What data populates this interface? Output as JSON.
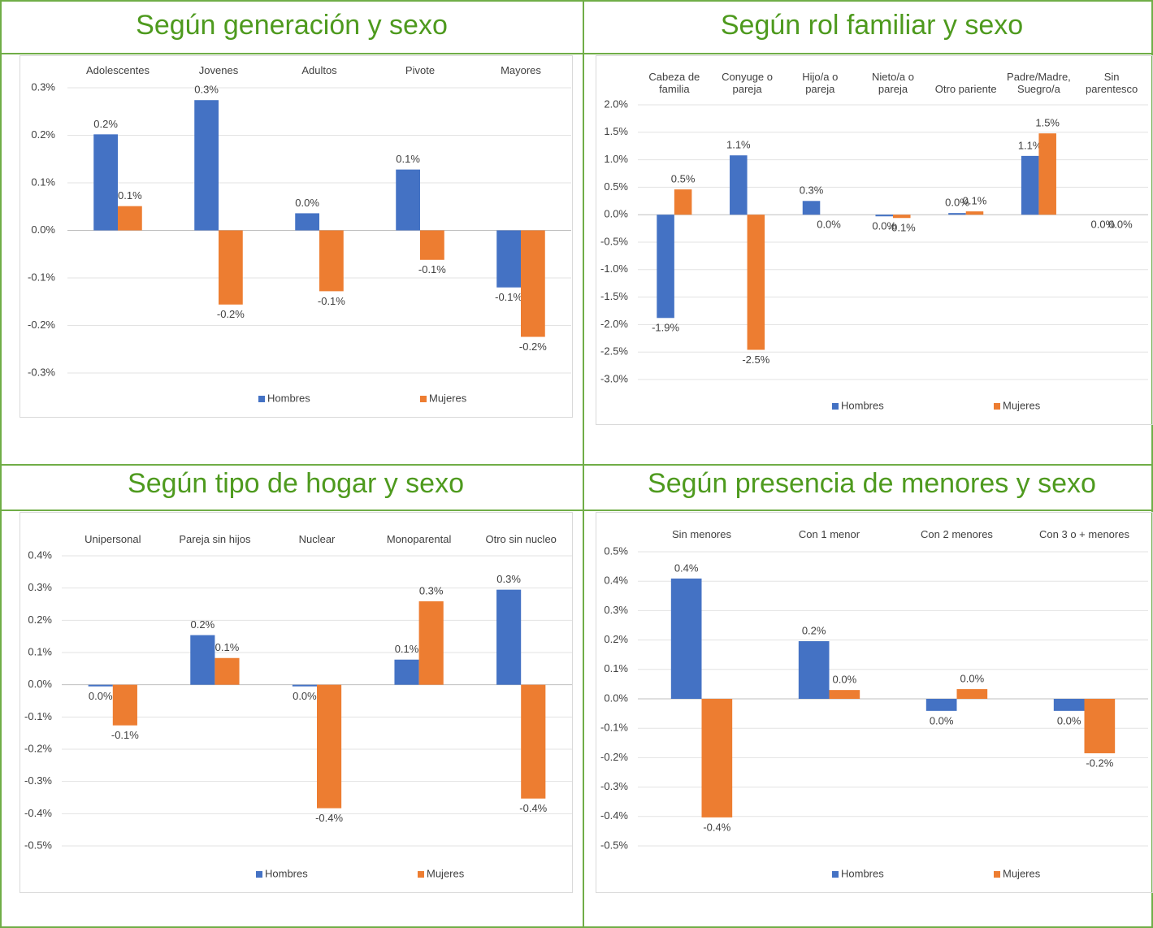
{
  "chart_data": [
    {
      "type": "bar",
      "title": "Según generación y sexo",
      "categories": [
        "Adolescentes",
        "Jovenes",
        "Adultos",
        "Pivote",
        "Mayores"
      ],
      "series": [
        {
          "name": "Hombres",
          "color": "#4472c4",
          "values": [
            0.202,
            0.274,
            0.036,
            0.128,
            -0.12
          ],
          "value_labels": [
            "0.2%",
            "0.3%",
            "0.0%",
            "0.1%",
            "-0.1%"
          ]
        },
        {
          "name": "Mujeres",
          "color": "#ed7d31",
          "values": [
            0.051,
            -0.156,
            -0.128,
            -0.062,
            -0.224
          ],
          "value_labels": [
            "0.1%",
            "-0.2%",
            "-0.1%",
            "-0.1%",
            "-0.2%"
          ]
        }
      ],
      "ylim": [
        -0.3,
        0.3
      ],
      "yticks": [
        {
          "value": -0.3,
          "label": "-0.3%"
        },
        {
          "value": -0.2,
          "label": "-0.2%"
        },
        {
          "value": -0.1,
          "label": "-0.1%"
        },
        {
          "value": 0,
          "label": "0.0%"
        },
        {
          "value": 0.1,
          "label": "0.1%"
        },
        {
          "value": 0.2,
          "label": "0.2%"
        },
        {
          "value": 0.3,
          "label": "0.3%"
        }
      ],
      "grid": true
    },
    {
      "type": "bar",
      "title": "Según rol familiar y sexo",
      "categories": [
        "Cabeza de familia",
        "Conyuge o pareja",
        "Hijo/a o pareja",
        "Nieto/a o pareja",
        "Otro pariente",
        "Padre/Madre, Suegro/a",
        "Sin parentesco"
      ],
      "series": [
        {
          "name": "Hombres",
          "color": "#4472c4",
          "values": [
            -1.88,
            1.08,
            0.25,
            -0.03,
            0.03,
            1.07,
            0
          ],
          "value_labels": [
            "-1.9%",
            "1.1%",
            "0.3%",
            "0.0%",
            "0.0%",
            "1.1%",
            "0.0%"
          ]
        },
        {
          "name": "Mujeres",
          "color": "#ed7d31",
          "values": [
            0.46,
            -2.46,
            0,
            -0.06,
            0.06,
            1.48,
            0
          ],
          "value_labels": [
            "0.5%",
            "-2.5%",
            "0.0%",
            "-0.1%",
            "0.1%",
            "1.5%",
            "0.0%"
          ]
        }
      ],
      "ylim": [
        -3.0,
        2.0
      ],
      "yticks": [
        {
          "value": -3.0,
          "label": "-3.0%"
        },
        {
          "value": -2.5,
          "label": "-2.5%"
        },
        {
          "value": -2.0,
          "label": "-2.0%"
        },
        {
          "value": -1.5,
          "label": "-1.5%"
        },
        {
          "value": -1.0,
          "label": "-1.0%"
        },
        {
          "value": -0.5,
          "label": "-0.5%"
        },
        {
          "value": 0,
          "label": "0.0%"
        },
        {
          "value": 0.5,
          "label": "0.5%"
        },
        {
          "value": 1.0,
          "label": "1.0%"
        },
        {
          "value": 1.5,
          "label": "1.5%"
        },
        {
          "value": 2.0,
          "label": "2.0%"
        }
      ],
      "grid": true
    },
    {
      "type": "bar",
      "title": "Según tipo de hogar y sexo",
      "categories": [
        "Unipersonal",
        "Pareja sin hijos",
        "Nuclear",
        "Monoparental",
        "Otro sin nucleo"
      ],
      "series": [
        {
          "name": "Hombres",
          "color": "#4472c4",
          "values": [
            -0.005,
            0.154,
            -0.005,
            0.078,
            0.295
          ],
          "value_labels": [
            "0.0%",
            "0.2%",
            "0.0%",
            "0.1%",
            "0.3%"
          ]
        },
        {
          "name": "Mujeres",
          "color": "#ed7d31",
          "values": [
            -0.126,
            0.083,
            -0.383,
            0.259,
            -0.353
          ],
          "value_labels": [
            "-0.1%",
            "0.1%",
            "-0.4%",
            "0.3%",
            "-0.4%"
          ]
        }
      ],
      "ylim": [
        -0.5,
        0.4
      ],
      "yticks": [
        {
          "value": -0.5,
          "label": "-0.5%"
        },
        {
          "value": -0.4,
          "label": "-0.4%"
        },
        {
          "value": -0.3,
          "label": "-0.3%"
        },
        {
          "value": -0.2,
          "label": "-0.2%"
        },
        {
          "value": -0.1,
          "label": "-0.1%"
        },
        {
          "value": 0,
          "label": "0.0%"
        },
        {
          "value": 0.1,
          "label": "0.1%"
        },
        {
          "value": 0.2,
          "label": "0.2%"
        },
        {
          "value": 0.3,
          "label": "0.3%"
        },
        {
          "value": 0.4,
          "label": "0.4%"
        }
      ],
      "grid": true
    },
    {
      "type": "bar",
      "title": "Según presencia de menores y sexo",
      "categories": [
        "Sin menores",
        "Con 1 menor",
        "Con 2 menores",
        "Con 3 o + menores"
      ],
      "series": [
        {
          "name": "Hombres",
          "color": "#4472c4",
          "values": [
            0.409,
            0.196,
            -0.041,
            -0.041
          ],
          "value_labels": [
            "0.4%",
            "0.2%",
            "0.0%",
            "0.0%"
          ]
        },
        {
          "name": "Mujeres",
          "color": "#ed7d31",
          "values": [
            -0.403,
            0.03,
            0.033,
            -0.185
          ],
          "value_labels": [
            "-0.4%",
            "0.0%",
            "0.0%",
            "-0.2%"
          ]
        }
      ],
      "ylim": [
        -0.5,
        0.5
      ],
      "yticks": [
        {
          "value": -0.5,
          "label": "-0.5%"
        },
        {
          "value": -0.4,
          "label": "-0.4%"
        },
        {
          "value": -0.3,
          "label": "-0.3%"
        },
        {
          "value": -0.2,
          "label": "-0.2%"
        },
        {
          "value": -0.1,
          "label": "-0.1%"
        },
        {
          "value": 0,
          "label": "0.0%"
        },
        {
          "value": 0.1,
          "label": "0.1%"
        },
        {
          "value": 0.2,
          "label": "0.2%"
        },
        {
          "value": 0.3,
          "label": "0.3%"
        },
        {
          "value": 0.4,
          "label": "0.4%"
        },
        {
          "value": 0.5,
          "label": "0.5%"
        }
      ],
      "grid": true
    }
  ]
}
